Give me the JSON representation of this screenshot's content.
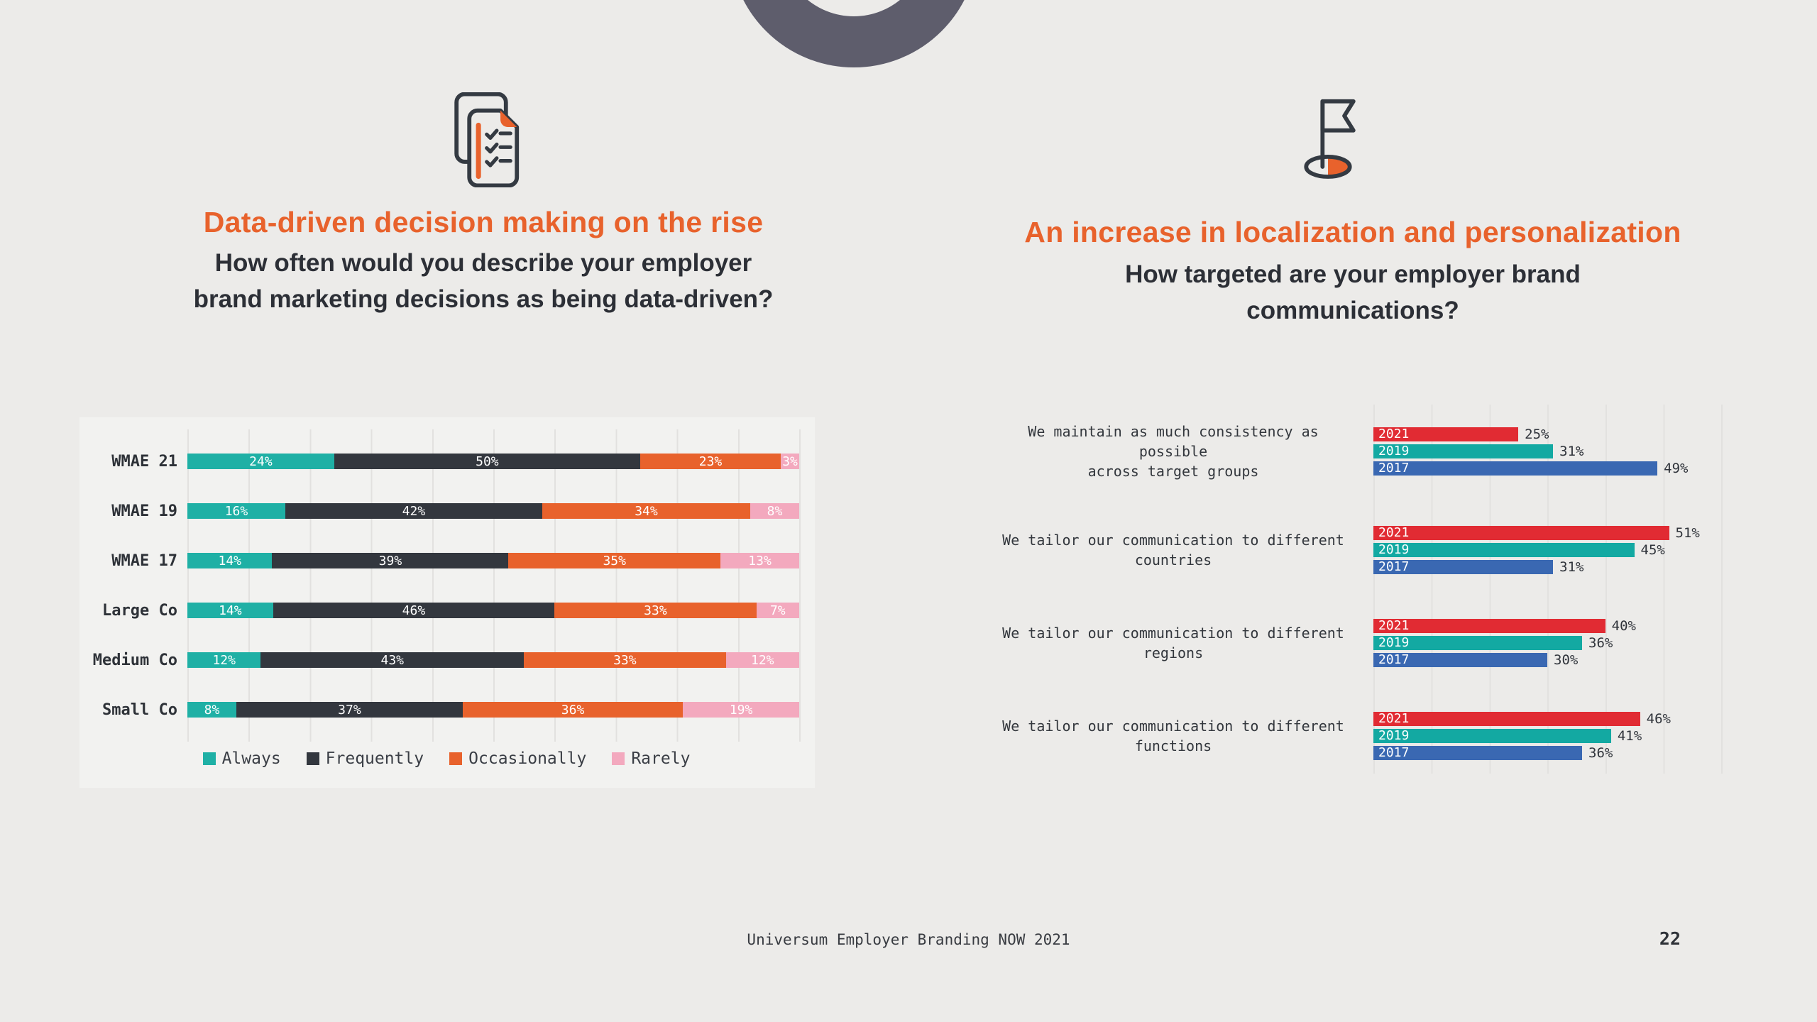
{
  "left": {
    "icon": "documents-checklist-icon",
    "title": "Data-driven decision making on the rise",
    "subtitle": "How often would you describe your employer\nbrand marketing decisions as being data-driven?"
  },
  "right": {
    "icon": "flag-location-icon",
    "title": "An increase in localization and personalization",
    "subtitle": "How targeted are your employer brand\ncommunications?"
  },
  "footer": {
    "source": "Universum Employer Branding NOW 2021",
    "page": "22"
  },
  "colors": {
    "background": "#ECEBE9",
    "accent_orange": "#E8622C",
    "dark_text": "#2C2F36",
    "ring_gray": "#5E5D6C",
    "grid_line": "#E2E1DF"
  },
  "chart_data": [
    {
      "type": "bar",
      "variant": "horizontal-stacked",
      "title": "How often would you describe your employer brand marketing decisions as being data-driven?",
      "unit": "%",
      "xlim": [
        0,
        100
      ],
      "legend_position": "bottom",
      "categories": [
        "WMAE 21",
        "WMAE 19",
        "WMAE 17",
        "Large Co",
        "Medium Co",
        "Small Co"
      ],
      "series": [
        {
          "name": "Always",
          "color": "#1FB0A5",
          "values": [
            24,
            16,
            14,
            14,
            12,
            8
          ]
        },
        {
          "name": "Frequently",
          "color": "#33373E",
          "values": [
            50,
            42,
            39,
            46,
            43,
            37
          ]
        },
        {
          "name": "Occasionally",
          "color": "#E8622C",
          "values": [
            23,
            34,
            35,
            33,
            33,
            36
          ]
        },
        {
          "name": "Rarely",
          "color": "#F3A9BE",
          "values": [
            3,
            8,
            13,
            7,
            12,
            19
          ]
        }
      ]
    },
    {
      "type": "bar",
      "variant": "horizontal-grouped",
      "title": "How targeted are your employer brand communications?",
      "unit": "%",
      "xlim": [
        0,
        60
      ],
      "value_labels": "outside-right",
      "categories": [
        "We maintain as much consistency as possible\nacross target groups",
        "We tailor our communication to different\ncountries",
        "We tailor our communication to different\nregions",
        "We tailor our communication to different\nfunctions"
      ],
      "series": [
        {
          "name": "2021",
          "color": "#E12B33",
          "values": [
            25,
            51,
            40,
            46
          ]
        },
        {
          "name": "2019",
          "color": "#13A9A2",
          "values": [
            31,
            45,
            36,
            41
          ]
        },
        {
          "name": "2017",
          "color": "#3A68B2",
          "values": [
            49,
            31,
            30,
            36
          ]
        }
      ]
    }
  ]
}
